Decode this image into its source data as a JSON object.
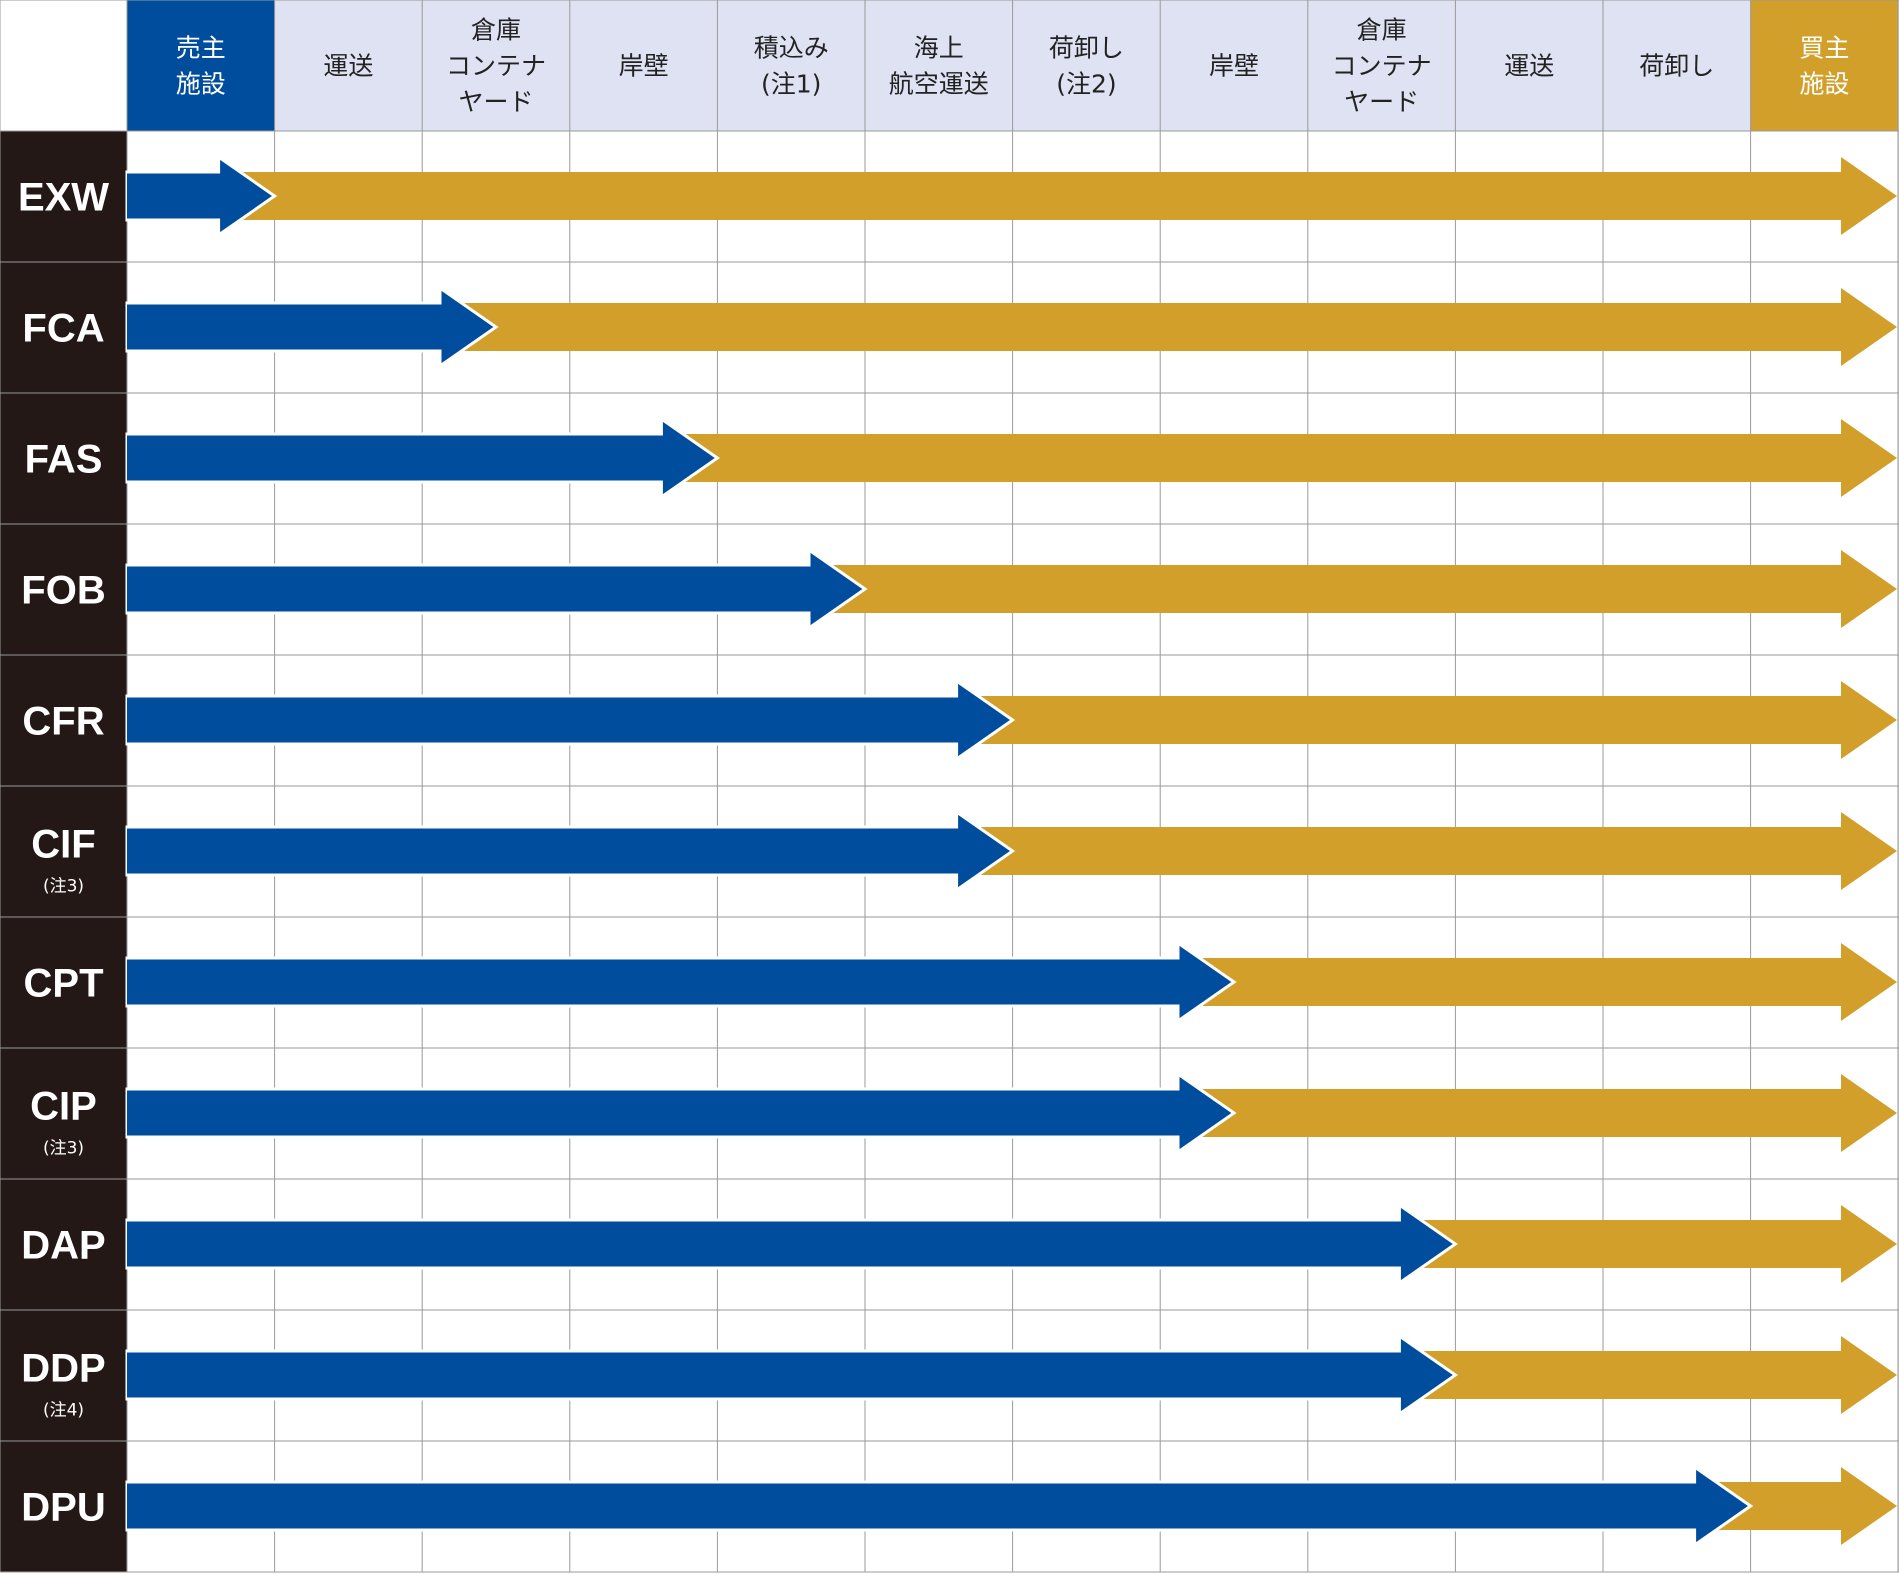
{
  "colors": {
    "seller": "#004c9d",
    "buyer": "#d19f2a",
    "header_bg": "#dfe2f2",
    "row_label_bg": "#231815",
    "grid": "#9a9a9a"
  },
  "columns": [
    {
      "lines": [
        "売主",
        "施設"
      ],
      "style": "seller"
    },
    {
      "lines": [
        "運送"
      ],
      "style": "normal"
    },
    {
      "lines": [
        "倉庫",
        "コンテナ",
        "ヤード"
      ],
      "style": "normal"
    },
    {
      "lines": [
        "岸壁"
      ],
      "style": "normal"
    },
    {
      "lines": [
        "積込み",
        "(注1)"
      ],
      "style": "normal"
    },
    {
      "lines": [
        "海上",
        "航空運送"
      ],
      "style": "normal"
    },
    {
      "lines": [
        "荷卸し",
        "(注2)"
      ],
      "style": "normal"
    },
    {
      "lines": [
        "岸壁"
      ],
      "style": "normal"
    },
    {
      "lines": [
        "倉庫",
        "コンテナ",
        "ヤード"
      ],
      "style": "normal"
    },
    {
      "lines": [
        "運送"
      ],
      "style": "normal"
    },
    {
      "lines": [
        "荷卸し"
      ],
      "style": "normal"
    },
    {
      "lines": [
        "買主",
        "施設"
      ],
      "style": "buyer"
    }
  ],
  "terms": [
    {
      "code": "EXW",
      "note": "",
      "transfer_column": 1
    },
    {
      "code": "FCA",
      "note": "",
      "transfer_column": 2.5
    },
    {
      "code": "FAS",
      "note": "",
      "transfer_column": 4
    },
    {
      "code": "FOB",
      "note": "",
      "transfer_column": 5
    },
    {
      "code": "CFR",
      "note": "",
      "transfer_column": 6
    },
    {
      "code": "CIF",
      "note": "(注3)",
      "transfer_column": 6
    },
    {
      "code": "CPT",
      "note": "",
      "transfer_column": 7.5
    },
    {
      "code": "CIP",
      "note": "(注3)",
      "transfer_column": 7.5
    },
    {
      "code": "DAP",
      "note": "",
      "transfer_column": 9
    },
    {
      "code": "DDP",
      "note": "(注4)",
      "transfer_column": 9
    },
    {
      "code": "DPU",
      "note": "",
      "transfer_column": 11
    }
  ]
}
